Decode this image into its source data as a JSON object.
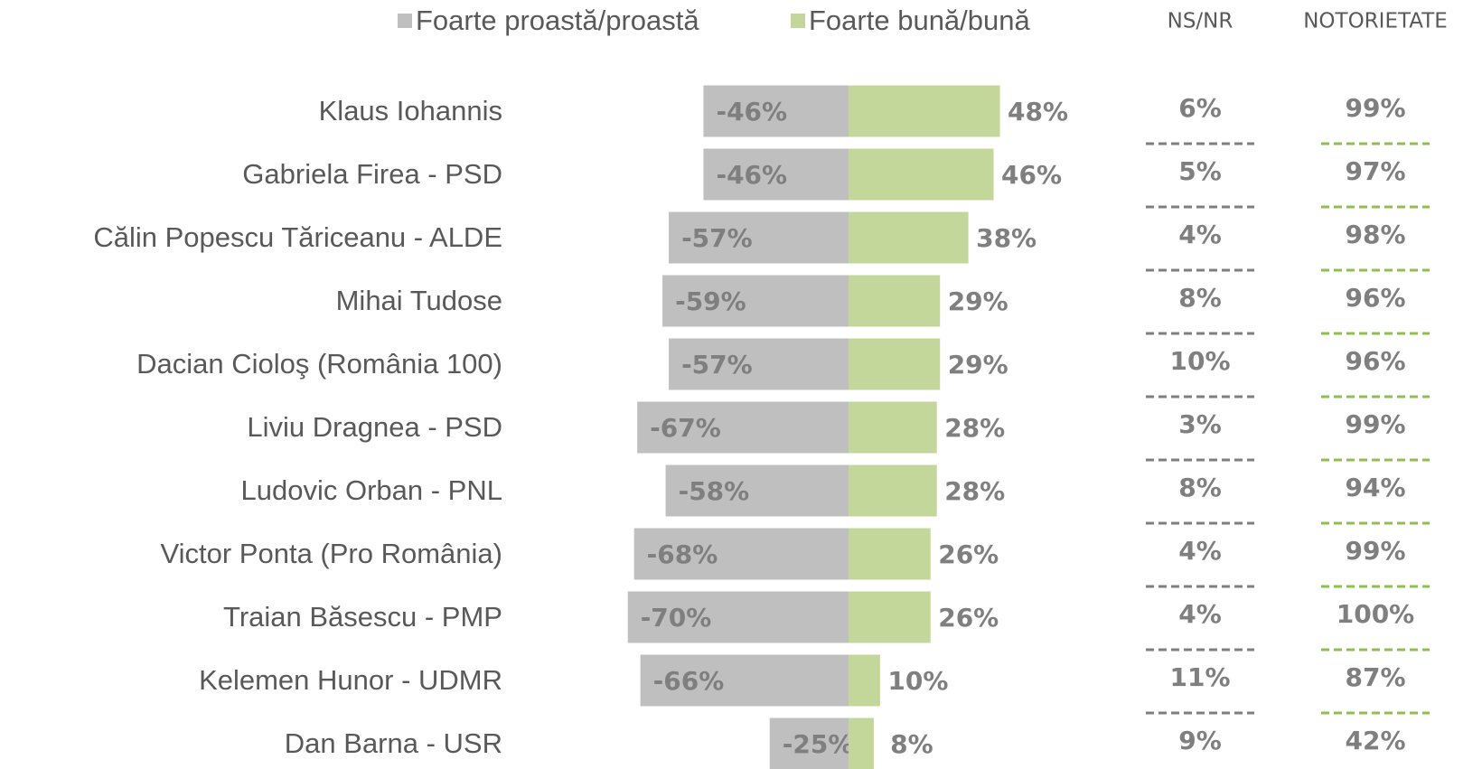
{
  "chart_data": {
    "type": "diverging-bar",
    "categories": [
      "Klaus Iohannis",
      "Gabriela Firea - PSD",
      "Călin Popescu Tăriceanu - ALDE",
      "Mihai Tudose",
      "Dacian Cioloş (România 100)",
      "Liviu Dragnea - PSD",
      "Ludovic Orban - PNL",
      "Victor Ponta (Pro România)",
      "Traian Băsescu - PMP",
      "Kelemen Hunor - UDMR",
      "Dan Barna - USR"
    ],
    "series": [
      {
        "name": "Foarte proastă/proastă",
        "color": "#bfbfbf",
        "values": [
          -46,
          -46,
          -57,
          -59,
          -57,
          -67,
          -58,
          -68,
          -70,
          -66,
          -25
        ],
        "value_labels": [
          "-46%",
          "-46%",
          "-57%",
          "-59%",
          "-57%",
          "-67%",
          "-58%",
          "-68%",
          "-70%",
          "-66%",
          "-25%"
        ]
      },
      {
        "name": "Foarte bună/bună",
        "color": "#c4d79b",
        "values": [
          48,
          46,
          38,
          29,
          29,
          28,
          28,
          26,
          26,
          10,
          8
        ],
        "value_labels": [
          "48%",
          "46%",
          "38%",
          "29%",
          "29%",
          "28%",
          "28%",
          "26%",
          "26%",
          "10%",
          "8%"
        ]
      }
    ],
    "columns": [
      {
        "name": "NS/NR",
        "color": "#7f7f7f",
        "values": [
          6,
          5,
          4,
          8,
          10,
          3,
          8,
          4,
          4,
          11,
          9
        ],
        "value_labels": [
          "6%",
          "5%",
          "4%",
          "8%",
          "10%",
          "3%",
          "8%",
          "4%",
          "4%",
          "11%",
          "9%"
        ]
      },
      {
        "name": "NOTORIETATE",
        "color": "#8fc04f",
        "values": [
          99,
          97,
          98,
          96,
          96,
          99,
          94,
          99,
          100,
          87,
          42
        ],
        "value_labels": [
          "99%",
          "97%",
          "98%",
          "96%",
          "96%",
          "99%",
          "94%",
          "99%",
          "100%",
          "87%",
          "42%"
        ]
      }
    ]
  }
}
